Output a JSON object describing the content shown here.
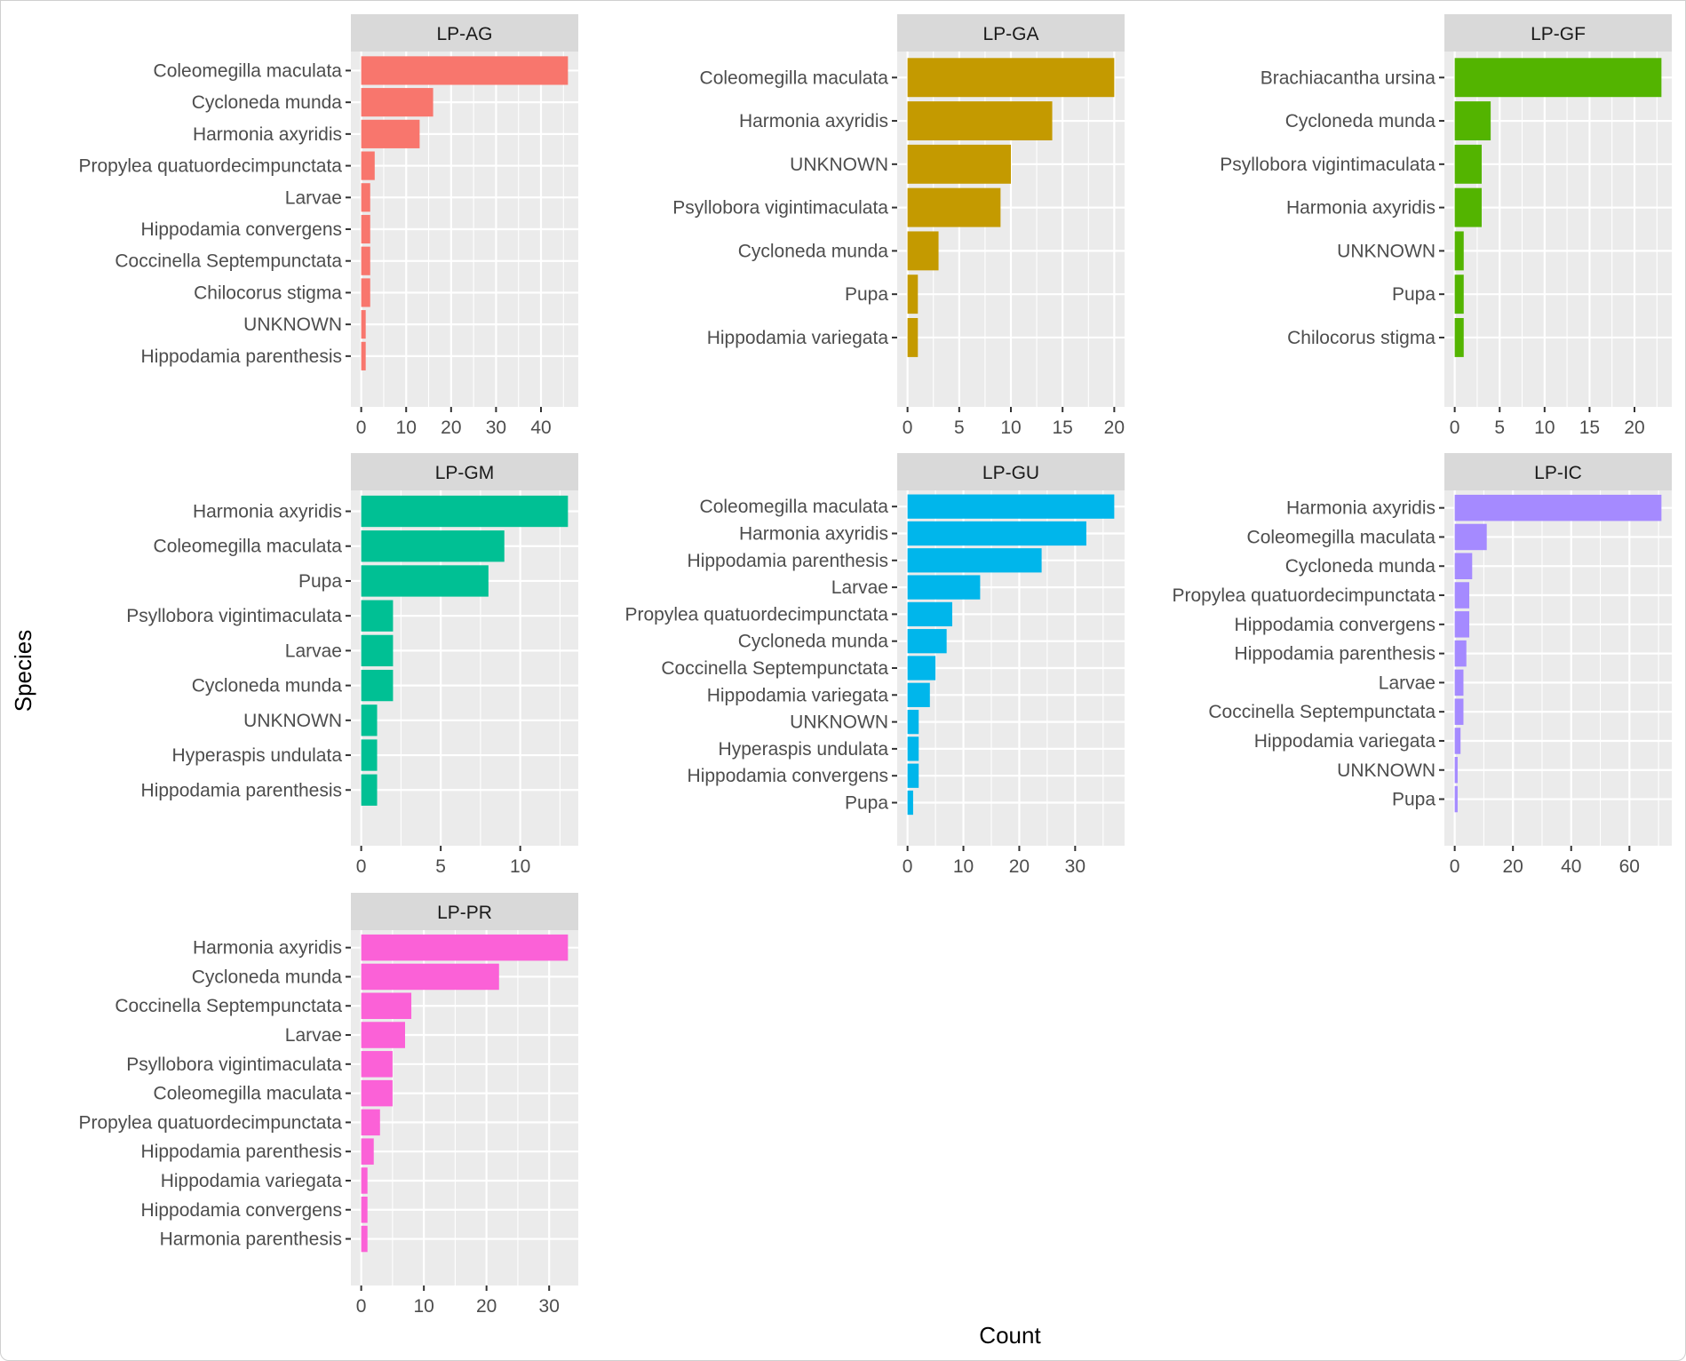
{
  "chart_data": {
    "type": "bar",
    "orientation": "horizontal",
    "facet": "wrap",
    "xlabel": "Count",
    "ylabel": "Species",
    "grid": true,
    "legend": "none",
    "panels": [
      {
        "title": "LP-AG",
        "color": "#F8766D",
        "xlim": [
          -2.3,
          48.3
        ],
        "ticks": [
          0,
          10,
          20,
          30,
          40
        ],
        "categories": [
          "Coleomegilla maculata",
          "Cycloneda munda",
          "Harmonia axyridis",
          "Propylea quatuordecimpunctata",
          "Larvae",
          "Hippodamia convergens",
          "Coccinella Septempunctata",
          "Chilocorus stigma",
          "UNKNOWN",
          "Hippodamia parenthesis"
        ],
        "values": [
          46,
          16,
          13,
          3,
          2,
          2,
          2,
          2,
          1,
          1
        ]
      },
      {
        "title": "LP-GA",
        "color": "#C49A00",
        "xlim": [
          -1,
          21
        ],
        "ticks": [
          0,
          5,
          10,
          15,
          20
        ],
        "categories": [
          "Coleomegilla maculata",
          "Harmonia axyridis",
          "UNKNOWN",
          "Psyllobora vigintimaculata",
          "Cycloneda munda",
          "Pupa",
          "Hippodamia variegata"
        ],
        "values": [
          20,
          14,
          10,
          9,
          3,
          1,
          1
        ]
      },
      {
        "title": "LP-GF",
        "color": "#53B400",
        "xlim": [
          -1.15,
          24.15
        ],
        "ticks": [
          0,
          5,
          10,
          15,
          20
        ],
        "categories": [
          "Brachiacantha ursina",
          "Cycloneda munda",
          "Psyllobora vigintimaculata",
          "Harmonia axyridis",
          "UNKNOWN",
          "Pupa",
          "Chilocorus stigma"
        ],
        "values": [
          23,
          4,
          3,
          3,
          1,
          1,
          1
        ]
      },
      {
        "title": "LP-GM",
        "color": "#00C094",
        "xlim": [
          -0.65,
          13.65
        ],
        "ticks": [
          0,
          5,
          10
        ],
        "categories": [
          "Harmonia axyridis",
          "Coleomegilla maculata",
          "Pupa",
          "Psyllobora vigintimaculata",
          "Larvae",
          "Cycloneda munda",
          "UNKNOWN",
          "Hyperaspis undulata",
          "Hippodamia parenthesis"
        ],
        "values": [
          13,
          9,
          8,
          2,
          2,
          2,
          1,
          1,
          1
        ]
      },
      {
        "title": "LP-GU",
        "color": "#00B6EB",
        "xlim": [
          -1.85,
          38.85
        ],
        "ticks": [
          0,
          10,
          20,
          30
        ],
        "categories": [
          "Coleomegilla maculata",
          "Harmonia axyridis",
          "Hippodamia parenthesis",
          "Larvae",
          "Propylea quatuordecimpunctata",
          "Cycloneda munda",
          "Coccinella Septempunctata",
          "Hippodamia variegata",
          "UNKNOWN",
          "Hyperaspis undulata",
          "Hippodamia convergens",
          "Pupa"
        ],
        "values": [
          37,
          32,
          24,
          13,
          8,
          7,
          5,
          4,
          2,
          2,
          2,
          1
        ]
      },
      {
        "title": "LP-IC",
        "color": "#A58AFF",
        "xlim": [
          -3.55,
          74.55
        ],
        "ticks": [
          0,
          20,
          40,
          60
        ],
        "categories": [
          "Harmonia axyridis",
          "Coleomegilla maculata",
          "Cycloneda munda",
          "Propylea quatuordecimpunctata",
          "Hippodamia convergens",
          "Hippodamia parenthesis",
          "Larvae",
          "Coccinella Septempunctata",
          "Hippodamia variegata",
          "UNKNOWN",
          "Pupa"
        ],
        "values": [
          71,
          11,
          6,
          5,
          5,
          4,
          3,
          3,
          2,
          1,
          1
        ]
      },
      {
        "title": "LP-PR",
        "color": "#FB61D7",
        "xlim": [
          -1.65,
          34.65
        ],
        "ticks": [
          0,
          10,
          20,
          30
        ],
        "categories": [
          "Harmonia axyridis",
          "Cycloneda munda",
          "Coccinella Septempunctata",
          "Larvae",
          "Psyllobora vigintimaculata",
          "Coleomegilla maculata",
          "Propylea quatuordecimpunctata",
          "Hippodamia parenthesis",
          "Hippodamia variegata",
          "Hippodamia convergens",
          "Harmonia parenthesis"
        ],
        "values": [
          33,
          22,
          8,
          7,
          5,
          5,
          3,
          2,
          1,
          1,
          1
        ]
      }
    ]
  }
}
